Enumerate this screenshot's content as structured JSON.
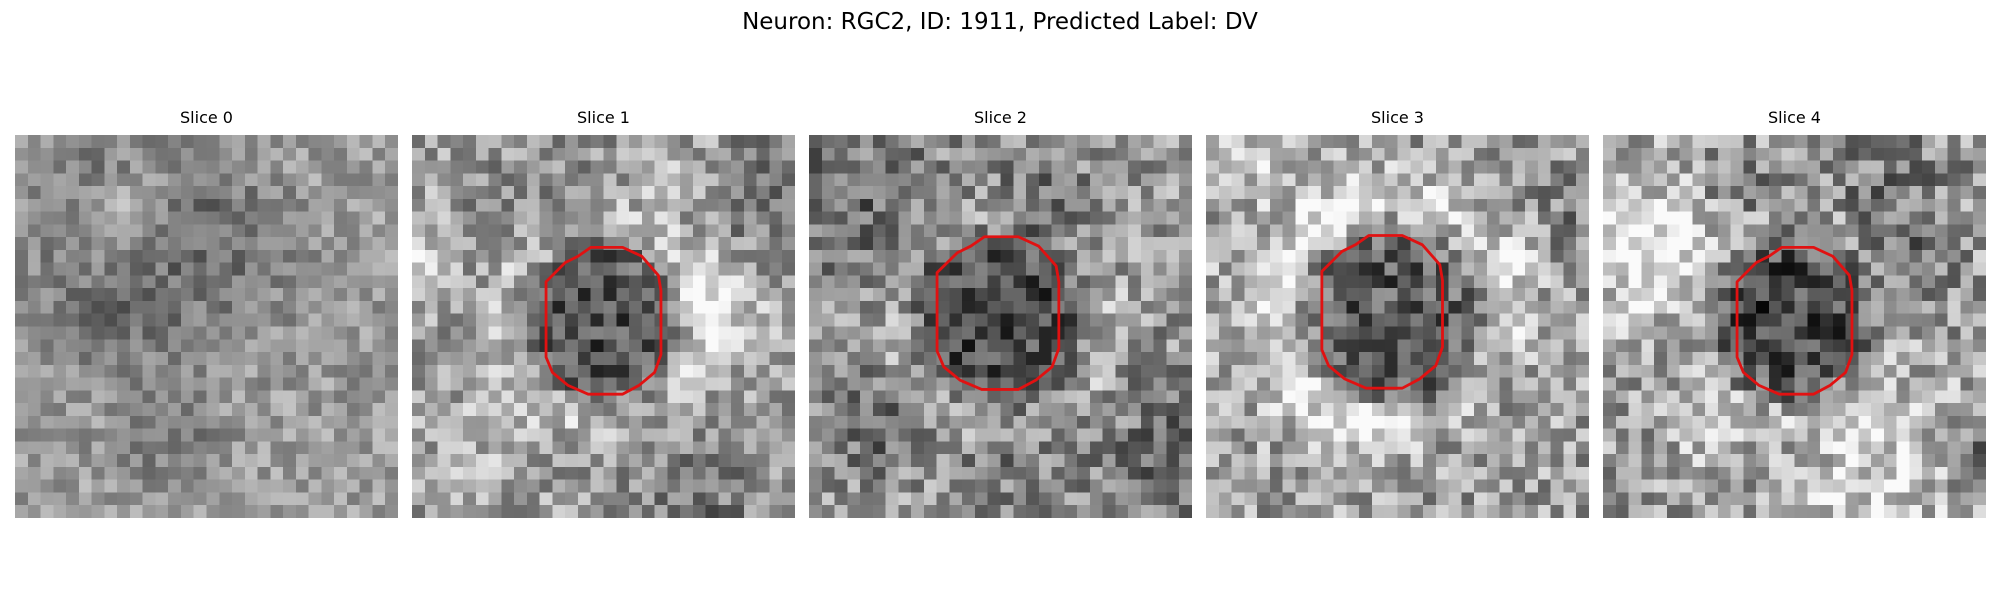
{
  "figure": {
    "title": "Neuron: RGC2, ID: 1911, Predicted Label: DV"
  },
  "slices": [
    {
      "label": "Slice 0",
      "has_contour": false,
      "texture": "mottled-gray",
      "contrast": 0.55
    },
    {
      "label": "Slice 1",
      "has_contour": true,
      "texture": "dark-cell-body",
      "contrast": 0.8
    },
    {
      "label": "Slice 2",
      "has_contour": true,
      "texture": "dark-cell-body",
      "contrast": 0.85
    },
    {
      "label": "Slice 3",
      "has_contour": true,
      "texture": "dark-cell-body-smooth",
      "contrast": 0.9
    },
    {
      "label": "Slice 4",
      "has_contour": true,
      "texture": "noisy-cell-body",
      "contrast": 0.95
    }
  ],
  "colors": {
    "contour": "#e11111",
    "background": "#ffffff"
  }
}
